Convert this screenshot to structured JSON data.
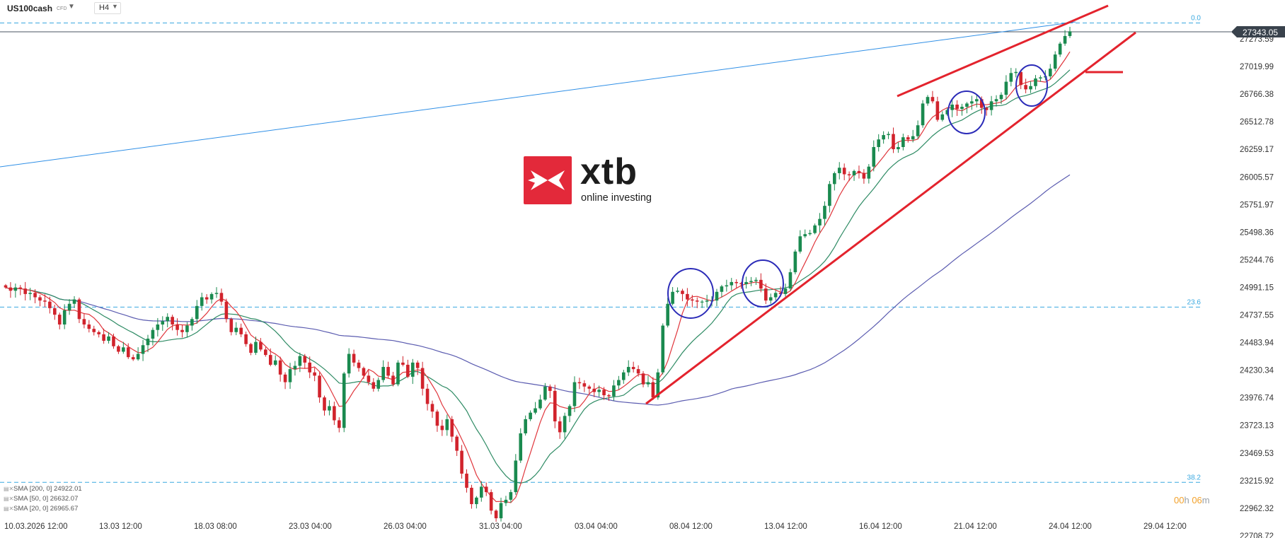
{
  "header": {
    "symbol": "US100cash",
    "type": "CFD",
    "timeframe": "H4"
  },
  "logo": {
    "word": "xtb",
    "sub": "online investing"
  },
  "timer": {
    "hours": "00",
    "h": "h",
    "minutes": "06",
    "m": "m"
  },
  "legend": [
    {
      "label": "SMA [200, 0] 24922.01"
    },
    {
      "label": "SMA [50, 0] 26632.07"
    },
    {
      "label": "SMA [20, 0] 26965.67"
    }
  ],
  "colors": {
    "up": "#1a8a4f",
    "down": "#d1232c",
    "sma200": "#5b5cb0",
    "sma50": "#2e8b64",
    "sma20": "#e0363c",
    "fib": "#39a8e0",
    "trend": "#e3232d",
    "circle": "#2b2bb8",
    "longline": "#2f8fe6"
  },
  "chart_data": {
    "type": "candlestick",
    "title": "",
    "instrument": "US100cash",
    "timeframe": "H4",
    "y_ticks": [
      "27273.59",
      "27019.99",
      "26766.38",
      "26512.78",
      "26259.17",
      "26005.57",
      "25751.97",
      "25498.36",
      "25244.76",
      "24991.15",
      "24737.55",
      "24483.94",
      "24230.34",
      "23976.74",
      "23723.13",
      "23469.53",
      "23215.92",
      "22962.32",
      "22708.72"
    ],
    "x_ticks": [
      "10.03.2026 12:00",
      "13.03 12:00",
      "18.03 08:00",
      "23.03 04:00",
      "26.03 04:00",
      "31.03 04:00",
      "03.04 04:00",
      "08.04 12:00",
      "13.04 12:00",
      "16.04 12:00",
      "21.04 12:00",
      "24.04 12:00",
      "29.04 12:00"
    ],
    "price_label": "27343.05",
    "fib_levels": [
      {
        "label": "0.0",
        "value": 27420
      },
      {
        "label": "23.6",
        "value": 24810
      },
      {
        "label": "38.2",
        "value": 23200
      }
    ],
    "candles_close": [
      24990,
      24960,
      24990,
      24980,
      24930,
      24940,
      24900,
      24870,
      24860,
      24800,
      24740,
      24650,
      24780,
      24840,
      24880,
      24700,
      24650,
      24610,
      24580,
      24560,
      24500,
      24540,
      24450,
      24400,
      24440,
      24350,
      24330,
      24380,
      24460,
      24520,
      24600,
      24650,
      24680,
      24720,
      24650,
      24600,
      24580,
      24640,
      24700,
      24820,
      24900,
      24880,
      24930,
      24940,
      24860,
      24700,
      24580,
      24620,
      24560,
      24470,
      24390,
      24490,
      24420,
      24370,
      24280,
      24320,
      24190,
      24120,
      24240,
      24270,
      24360,
      24300,
      24210,
      24180,
      23980,
      23860,
      23900,
      23770,
      23700,
      24200,
      24380,
      24300,
      24250,
      24180,
      24120,
      24060,
      24140,
      24260,
      24180,
      24100,
      24300,
      24280,
      24170,
      24300,
      24250,
      24060,
      23920,
      23850,
      23720,
      23680,
      23780,
      23620,
      23490,
      23280,
      23150,
      23000,
      23060,
      23160,
      23110,
      22940,
      22870,
      23010,
      23040,
      23110,
      23400,
      23650,
      23780,
      23840,
      23880,
      23960,
      24080,
      24040,
      23760,
      23660,
      23810,
      23900,
      24120,
      24110,
      24080,
      24060,
      24030,
      24050,
      24000,
      23990,
      24090,
      24140,
      24210,
      24260,
      24240,
      24200,
      24100,
      24120,
      23980,
      24210,
      24640,
      24840,
      24950,
      24960,
      24930,
      24880,
      24870,
      24860,
      24860,
      24870,
      24870,
      24950,
      25000,
      25010,
      25040,
      25030,
      25020,
      25040,
      25050,
      25060,
      24980,
      24870,
      24900,
      24940,
      24930,
      24980,
      25130,
      25320,
      25460,
      25480,
      25490,
      25560,
      25620,
      25740,
      25940,
      26040,
      26090,
      26030,
      26020,
      26060,
      26040,
      25990,
      26100,
      26280,
      26350,
      26390,
      26400,
      26260,
      26280,
      26370,
      26350,
      26380,
      26480,
      26680,
      26740,
      26700,
      26530,
      26580,
      26620,
      26670,
      26630,
      26650,
      26680,
      26700,
      26720,
      26640,
      26620,
      26700,
      26720,
      26760,
      26880,
      26960,
      26970,
      26850,
      26810,
      26840,
      26910,
      26920,
      26930,
      27000,
      27130,
      27230,
      27300,
      27343
    ]
  }
}
